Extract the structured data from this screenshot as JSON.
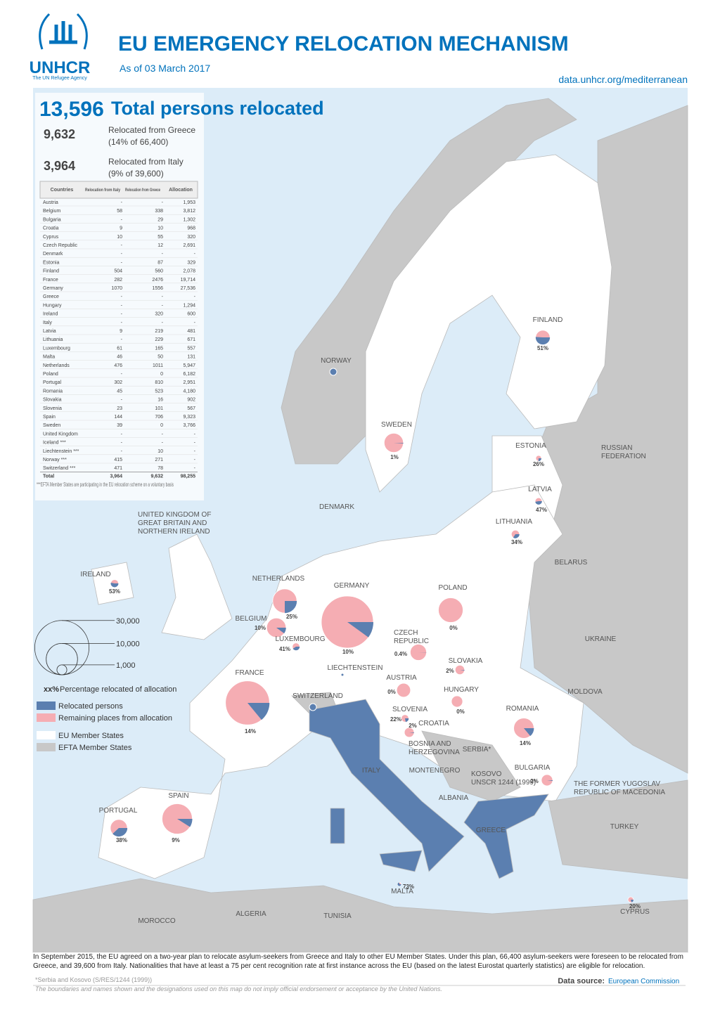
{
  "header": {
    "org": "UNHCR",
    "org_sub": "The UN Refugee Agency",
    "title": "EU EMERGENCY RELOCATION MECHANISM",
    "date": "As of 03 March 2017",
    "url": "data.unhcr.org/mediterranean"
  },
  "totals": {
    "total": "13,596",
    "total_label": "Total persons relocated",
    "greece": "9,632",
    "greece_label": "Relocated from Greece",
    "greece_note": "(14% of 66,400)",
    "italy": "3,964",
    "italy_label": "Relocated from Italy",
    "italy_note": "(9% of 39,600)"
  },
  "table": {
    "columns": [
      "Countries",
      "Relocation from Italy",
      "Relocation from Greece",
      "Allocation"
    ],
    "rows": [
      [
        "Austria",
        "-",
        "-",
        "1,953"
      ],
      [
        "Belgium",
        "58",
        "338",
        "3,812"
      ],
      [
        "Bulgaria",
        "-",
        "29",
        "1,302"
      ],
      [
        "Croatia",
        "9",
        "10",
        "968"
      ],
      [
        "Cyprus",
        "10",
        "55",
        "320"
      ],
      [
        "Czech Republic",
        "-",
        "12",
        "2,691"
      ],
      [
        "Denmark",
        "-",
        "-",
        "-"
      ],
      [
        "Estonia",
        "-",
        "87",
        "329"
      ],
      [
        "Finland",
        "504",
        "560",
        "2,078"
      ],
      [
        "France",
        "282",
        "2476",
        "19,714"
      ],
      [
        "Germany",
        "1070",
        "1556",
        "27,536"
      ],
      [
        "Greece",
        "-",
        "-",
        "-"
      ],
      [
        "Hungary",
        "-",
        "-",
        "1,294"
      ],
      [
        "Ireland",
        "-",
        "320",
        "600"
      ],
      [
        "Italy",
        "-",
        "-",
        "-"
      ],
      [
        "Latvia",
        "9",
        "219",
        "481"
      ],
      [
        "Lithuania",
        "-",
        "229",
        "671"
      ],
      [
        "Luxembourg",
        "61",
        "165",
        "557"
      ],
      [
        "Malta",
        "46",
        "50",
        "131"
      ],
      [
        "Netherlands",
        "476",
        "1011",
        "5,947"
      ],
      [
        "Poland",
        "-",
        "0",
        "6,182"
      ],
      [
        "Portugal",
        "302",
        "810",
        "2,951"
      ],
      [
        "Romania",
        "45",
        "523",
        "4,180"
      ],
      [
        "Slovakia",
        "-",
        "16",
        "902"
      ],
      [
        "Slovenia",
        "23",
        "101",
        "567"
      ],
      [
        "Spain",
        "144",
        "706",
        "9,323"
      ],
      [
        "Sweden",
        "39",
        "0",
        "3,766"
      ],
      [
        "United Kingdom",
        "-",
        "-",
        "-"
      ],
      [
        "Iceland ***",
        "-",
        "-",
        "-"
      ],
      [
        "Liechtenstein ***",
        "-",
        "10",
        "-"
      ],
      [
        "Norway ***",
        "415",
        "271",
        "-"
      ],
      [
        "Switzerland ***",
        "471",
        "78",
        "-"
      ]
    ],
    "total_row": [
      "Total",
      "3,964",
      "9,632",
      "98,255"
    ],
    "note": "***EFTA Member States are participating in the EU relocation scheme on a voluntary basis"
  },
  "chart_data": {
    "type": "pie-map",
    "pies": [
      {
        "name": [
          "FINLAND"
        ],
        "pct": 51,
        "pct_label": "51%",
        "allocation": 2078
      },
      {
        "name": [
          "SWEDEN"
        ],
        "pct": 1,
        "pct_label": "1%",
        "allocation": 3766
      },
      {
        "name": [
          "ESTONIA"
        ],
        "pct": 26,
        "pct_label": "26%",
        "allocation": 329
      },
      {
        "name": [
          "LATVIA"
        ],
        "pct": 47,
        "pct_label": "47%",
        "allocation": 481
      },
      {
        "name": [
          "LITHUANIA"
        ],
        "pct": 34,
        "pct_label": "34%",
        "allocation": 671
      },
      {
        "name": [
          "IRELAND"
        ],
        "pct": 53,
        "pct_label": "53%",
        "allocation": 600
      },
      {
        "name": [
          "NETHERLANDS"
        ],
        "pct": 25,
        "pct_label": "25%",
        "allocation": 5947
      },
      {
        "name": [
          "BELGIUM"
        ],
        "pct": 10,
        "pct_label": "10%",
        "allocation": 3812
      },
      {
        "name": [
          "LUXEMBOURG"
        ],
        "pct": 41,
        "pct_label": "41%",
        "allocation": 557
      },
      {
        "name": [
          "GERMANY"
        ],
        "pct": 10,
        "pct_label": "10%",
        "allocation": 27536
      },
      {
        "name": [
          "POLAND"
        ],
        "pct": 0,
        "pct_label": "0%",
        "allocation": 6182
      },
      {
        "name": [
          "CZECH",
          "REPUBLIC"
        ],
        "pct": 0.4,
        "pct_label": "0.4%",
        "allocation": 2691
      },
      {
        "name": [
          "SLOVAKIA"
        ],
        "pct": 2,
        "pct_label": "2%",
        "allocation": 902
      },
      {
        "name": [
          "AUSTRIA"
        ],
        "pct": 0,
        "pct_label": "0%",
        "allocation": 1953
      },
      {
        "name": [
          "HUNGARY"
        ],
        "pct": 0,
        "pct_label": "0%",
        "allocation": 1294
      },
      {
        "name": [
          "SLOVENIA"
        ],
        "pct": 22,
        "pct_label": "22%",
        "allocation": 567
      },
      {
        "name": [
          "CROATIA"
        ],
        "pct": 2,
        "pct_label": "2%",
        "allocation": 968
      },
      {
        "name": [
          "ROMANIA"
        ],
        "pct": 14,
        "pct_label": "14%",
        "allocation": 4180
      },
      {
        "name": [
          "BULGARIA"
        ],
        "pct": 2,
        "pct_label": "2%",
        "allocation": 1302
      },
      {
        "name": [
          "FRANCE"
        ],
        "pct": 14,
        "pct_label": "14%",
        "allocation": 19714
      },
      {
        "name": [
          "PORTUGAL"
        ],
        "pct": 38,
        "pct_label": "38%",
        "allocation": 2951
      },
      {
        "name": [
          "SPAIN"
        ],
        "pct": 9,
        "pct_label": "9%",
        "allocation": 9323
      },
      {
        "name": [
          "MALTA"
        ],
        "pct": 73,
        "pct_label": "73%",
        "allocation": 131
      },
      {
        "name": [
          "CYPRUS"
        ],
        "pct": 20,
        "pct_label": "20%",
        "allocation": 320
      }
    ],
    "efta_dots": [
      "NORWAY",
      "LIECHTENSTEIN",
      "SWITZERLAND"
    ],
    "colors": {
      "relocated": "#5b7fb0",
      "remaining": "#f5adb3",
      "eu": "#ffffff",
      "efta": "#c8c8c8",
      "sea": "#dcecf8"
    },
    "size_legend": [
      {
        "value": 30000,
        "label": "30,000"
      },
      {
        "value": 10000,
        "label": "10,000"
      },
      {
        "value": 1000,
        "label": "1,000"
      }
    ],
    "legend": {
      "pct_key": "xx%",
      "pct_text": "Percentage relocated of allocation",
      "relocated": "Relocated persons",
      "remaining": "Remaining places from allocation",
      "eu": "EU Member States",
      "efta": "EFTA Member States"
    },
    "place_labels": [
      [
        "UNITED KINGDOM OF",
        "GREAT BRITAIN AND",
        "NORTHERN IRELAND"
      ],
      [
        "DENMARK"
      ],
      [
        "RUSSIAN",
        "FEDERATION"
      ],
      [
        "BELARUS"
      ],
      [
        "UKRAINE"
      ],
      [
        "MOLDOVA"
      ],
      [
        "SERBIA*"
      ],
      [
        "BOSNIA AND",
        "HERZEGOVINA"
      ],
      [
        "MONTENEGRO"
      ],
      [
        "KOSOVO",
        "UNSCR 1244 (1999)"
      ],
      [
        "ALBANIA"
      ],
      [
        "THE FORMER YUGOSLAV",
        "REPUBLIC OF MACEDONIA"
      ],
      [
        "TURKEY"
      ],
      [
        "ITALY"
      ],
      [
        "GREECE"
      ],
      [
        "MOROCCO"
      ],
      [
        "ALGERIA"
      ],
      [
        "TUNISIA"
      ]
    ]
  },
  "footer": {
    "text": "In September 2015, the EU agreed on a two-year plan to relocate asylum-seekers from Greece and Italy to other EU Member States. Under this plan, 66,400 asylum-seekers were foreseen to be relocated from Greece, and 39,600 from Italy. Nationalities that have at least a 75 per cent recognition rate at first instance across the EU (based on the latest Eurostat quarterly statistics) are eligible for relocation.",
    "serbia_note": "*Serbia and Kosovo (S/RES/1244 (1999))",
    "source_label": "Data source:",
    "source": "European Commission",
    "disclaimer": "The boundaries and names shown and the designations used on this map do not imply official endorsement or acceptance by the United Nations."
  }
}
